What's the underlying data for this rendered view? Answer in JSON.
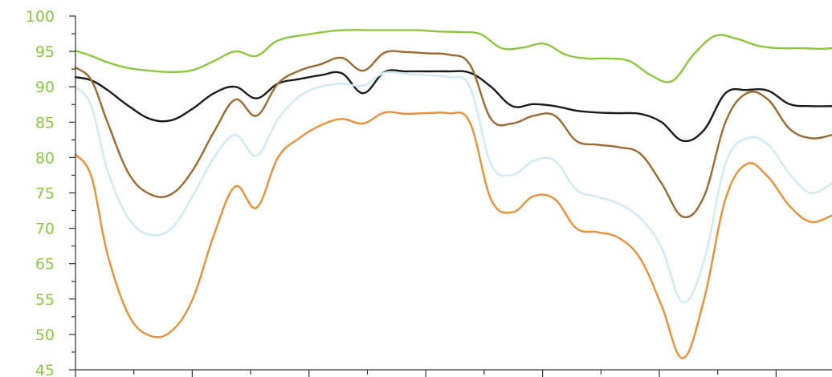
{
  "colors": {
    "tick_label": "#8dc63f",
    "axis": "#333333"
  },
  "chart_data": {
    "type": "line",
    "title": "",
    "xlabel": "",
    "ylabel": "",
    "ylim": [
      45,
      100
    ],
    "xlim": [
      0,
      14.2
    ],
    "grid": false,
    "legend": "none",
    "y_tick_labels": [
      "45",
      "50",
      "55",
      "65",
      "70",
      "75",
      "80",
      "85",
      "90",
      "95",
      "100"
    ],
    "x_tick_count": 13,
    "series": [
      {
        "color": "#8dc63f",
        "x": [
          0,
          0.3,
          0.6,
          1.0,
          1.4,
          1.8,
          2.2,
          2.6,
          3.0,
          3.4,
          3.8,
          4.4,
          5.0,
          5.6,
          6.0,
          6.4,
          6.8,
          7.2,
          7.6,
          8.0,
          8.4,
          8.8,
          9.2,
          9.6,
          10.0,
          10.4,
          10.8,
          11.2,
          11.6,
          12.0,
          12.4,
          12.8,
          13.2,
          13.6,
          14.0,
          14.2
        ],
        "y": [
          94.6,
          93.8,
          92.8,
          91.9,
          91.5,
          91.3,
          91.6,
          93.0,
          94.5,
          93.8,
          96.2,
          97.2,
          97.8,
          97.8,
          97.8,
          97.8,
          97.6,
          97.5,
          97.2,
          95.0,
          95.1,
          95.7,
          94.0,
          93.4,
          93.4,
          93.0,
          90.8,
          89.9,
          94.0,
          96.9,
          96.5,
          95.4,
          95.0,
          95.0,
          94.9,
          95.0
        ]
      },
      {
        "color": "#1a1a1a",
        "x": [
          0,
          0.3,
          0.6,
          1.0,
          1.4,
          1.8,
          2.2,
          2.6,
          3.0,
          3.4,
          3.8,
          4.2,
          4.6,
          5.0,
          5.4,
          5.8,
          6.2,
          6.6,
          7.0,
          7.4,
          7.8,
          8.2,
          8.6,
          9.0,
          9.4,
          9.8,
          10.2,
          10.6,
          11.0,
          11.4,
          11.8,
          12.2,
          12.6,
          13.0,
          13.4,
          13.8,
          14.2
        ],
        "y": [
          90.5,
          90.0,
          88.5,
          86.0,
          84.0,
          83.8,
          85.6,
          88.0,
          89.0,
          87.2,
          89.5,
          90.2,
          90.8,
          91.1,
          88.0,
          91.3,
          91.4,
          91.4,
          91.4,
          91.2,
          89.0,
          86.0,
          86.3,
          86.0,
          85.3,
          85.0,
          84.9,
          84.8,
          83.5,
          80.6,
          82.3,
          88.0,
          88.5,
          88.4,
          86.3,
          86.0,
          86.0
        ]
      },
      {
        "color": "#9b6a31",
        "x": [
          0,
          0.3,
          0.6,
          1.0,
          1.4,
          1.8,
          2.2,
          2.6,
          3.0,
          3.4,
          3.8,
          4.2,
          4.6,
          5.0,
          5.4,
          5.8,
          6.2,
          6.6,
          7.0,
          7.4,
          7.8,
          8.2,
          8.6,
          9.0,
          9.4,
          9.8,
          10.2,
          10.6,
          11.0,
          11.4,
          11.8,
          12.2,
          12.6,
          13.0,
          13.4,
          13.8,
          14.2
        ],
        "y": [
          92.0,
          90.0,
          83.5,
          75.5,
          72.3,
          72.3,
          76.0,
          82.0,
          87.0,
          84.5,
          89.5,
          91.5,
          92.5,
          93.5,
          91.5,
          94.3,
          94.4,
          94.2,
          94.0,
          92.5,
          84.0,
          83.3,
          84.5,
          84.5,
          80.6,
          80.0,
          79.6,
          78.6,
          74.0,
          68.8,
          72.0,
          83.5,
          88.0,
          87.0,
          82.5,
          81.0,
          81.5
        ]
      },
      {
        "color": "#cfe9f3",
        "x": [
          0,
          0.3,
          0.6,
          1.0,
          1.4,
          1.8,
          2.2,
          2.6,
          3.0,
          3.4,
          3.8,
          4.2,
          4.6,
          5.0,
          5.4,
          5.8,
          6.2,
          6.6,
          7.0,
          7.4,
          7.8,
          8.2,
          8.6,
          9.0,
          9.4,
          9.8,
          10.2,
          10.6,
          11.0,
          11.4,
          11.8,
          12.2,
          12.6,
          13.0,
          13.4,
          13.8,
          14.2
        ],
        "y": [
          89.0,
          86.0,
          76.0,
          68.5,
          66.0,
          67.0,
          72.0,
          78.0,
          81.5,
          78.3,
          84.0,
          87.5,
          89.0,
          89.5,
          89.2,
          91.2,
          91.0,
          90.8,
          90.5,
          89.0,
          77.0,
          75.3,
          77.5,
          77.5,
          73.0,
          71.9,
          70.8,
          68.6,
          64.0,
          55.5,
          62.0,
          77.0,
          81.0,
          80.0,
          75.5,
          72.5,
          74.0
        ]
      },
      {
        "color": "#e8913a",
        "x": [
          0,
          0.3,
          0.6,
          1.0,
          1.4,
          1.8,
          2.2,
          2.6,
          3.0,
          3.4,
          3.8,
          4.2,
          4.6,
          5.0,
          5.4,
          5.8,
          6.2,
          6.6,
          7.0,
          7.4,
          7.8,
          8.2,
          8.6,
          9.0,
          9.4,
          9.8,
          10.2,
          10.6,
          11.0,
          11.4,
          11.8,
          12.2,
          12.6,
          13.0,
          13.4,
          13.8,
          14.2
        ],
        "y": [
          78.5,
          75.0,
          63.0,
          53.5,
          50.3,
          51.0,
          56.0,
          66.0,
          73.5,
          70.2,
          78.0,
          81.0,
          83.0,
          84.0,
          83.3,
          85.0,
          84.8,
          84.9,
          84.9,
          83.5,
          71.5,
          69.5,
          72.0,
          71.5,
          67.0,
          66.4,
          65.5,
          62.3,
          55.0,
          46.8,
          56.0,
          71.5,
          77.0,
          75.0,
          70.5,
          68.0,
          69.0
        ]
      }
    ]
  }
}
